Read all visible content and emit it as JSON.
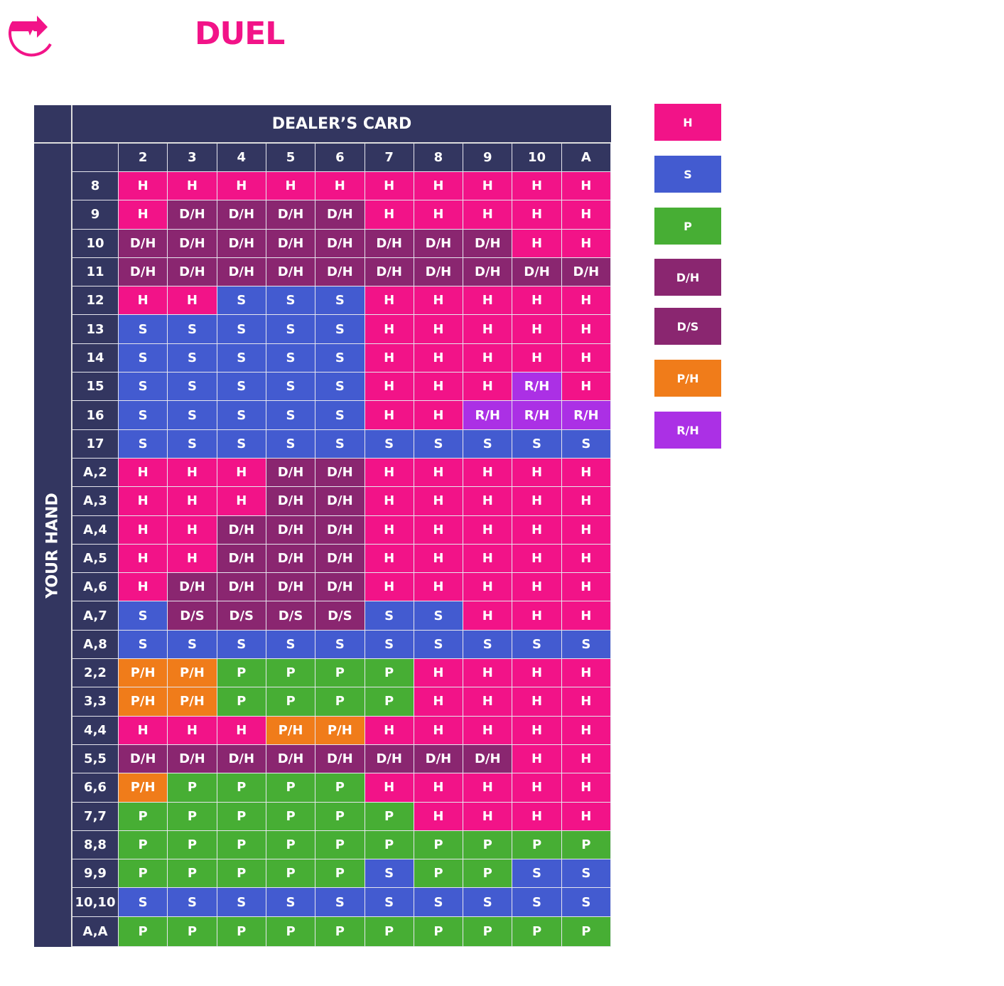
{
  "brand": {
    "name": "DUEL"
  },
  "table": {
    "title": "DEALER’S CARD",
    "side_title": "YOUR HAND",
    "dealer_cards": [
      "2",
      "3",
      "4",
      "5",
      "6",
      "7",
      "8",
      "9",
      "10",
      "A"
    ],
    "rows": [
      {
        "hand": "8",
        "cells": [
          "H",
          "H",
          "H",
          "H",
          "H",
          "H",
          "H",
          "H",
          "H",
          "H"
        ]
      },
      {
        "hand": "9",
        "cells": [
          "H",
          "D/H",
          "D/H",
          "D/H",
          "D/H",
          "H",
          "H",
          "H",
          "H",
          "H"
        ]
      },
      {
        "hand": "10",
        "cells": [
          "D/H",
          "D/H",
          "D/H",
          "D/H",
          "D/H",
          "D/H",
          "D/H",
          "D/H",
          "H",
          "H"
        ]
      },
      {
        "hand": "11",
        "cells": [
          "D/H",
          "D/H",
          "D/H",
          "D/H",
          "D/H",
          "D/H",
          "D/H",
          "D/H",
          "D/H",
          "D/H"
        ]
      },
      {
        "hand": "12",
        "cells": [
          "H",
          "H",
          "S",
          "S",
          "S",
          "H",
          "H",
          "H",
          "H",
          "H"
        ]
      },
      {
        "hand": "13",
        "cells": [
          "S",
          "S",
          "S",
          "S",
          "S",
          "H",
          "H",
          "H",
          "H",
          "H"
        ]
      },
      {
        "hand": "14",
        "cells": [
          "S",
          "S",
          "S",
          "S",
          "S",
          "H",
          "H",
          "H",
          "H",
          "H"
        ]
      },
      {
        "hand": "15",
        "cells": [
          "S",
          "S",
          "S",
          "S",
          "S",
          "H",
          "H",
          "H",
          "R/H",
          "H"
        ]
      },
      {
        "hand": "16",
        "cells": [
          "S",
          "S",
          "S",
          "S",
          "S",
          "H",
          "H",
          "R/H",
          "R/H",
          "R/H"
        ]
      },
      {
        "hand": "17",
        "cells": [
          "S",
          "S",
          "S",
          "S",
          "S",
          "S",
          "S",
          "S",
          "S",
          "S"
        ]
      },
      {
        "hand": "A,2",
        "cells": [
          "H",
          "H",
          "H",
          "D/H",
          "D/H",
          "H",
          "H",
          "H",
          "H",
          "H"
        ]
      },
      {
        "hand": "A,3",
        "cells": [
          "H",
          "H",
          "H",
          "D/H",
          "D/H",
          "H",
          "H",
          "H",
          "H",
          "H"
        ]
      },
      {
        "hand": "A,4",
        "cells": [
          "H",
          "H",
          "D/H",
          "D/H",
          "D/H",
          "H",
          "H",
          "H",
          "H",
          "H"
        ]
      },
      {
        "hand": "A,5",
        "cells": [
          "H",
          "H",
          "D/H",
          "D/H",
          "D/H",
          "H",
          "H",
          "H",
          "H",
          "H"
        ]
      },
      {
        "hand": "A,6",
        "cells": [
          "H",
          "D/H",
          "D/H",
          "D/H",
          "D/H",
          "H",
          "H",
          "H",
          "H",
          "H"
        ]
      },
      {
        "hand": "A,7",
        "cells": [
          "S",
          "D/S",
          "D/S",
          "D/S",
          "D/S",
          "S",
          "S",
          "H",
          "H",
          "H"
        ]
      },
      {
        "hand": "A,8",
        "cells": [
          "S",
          "S",
          "S",
          "S",
          "S",
          "S",
          "S",
          "S",
          "S",
          "S"
        ]
      },
      {
        "hand": "2,2",
        "cells": [
          "P/H",
          "P/H",
          "P",
          "P",
          "P",
          "P",
          "H",
          "H",
          "H",
          "H"
        ]
      },
      {
        "hand": "3,3",
        "cells": [
          "P/H",
          "P/H",
          "P",
          "P",
          "P",
          "P",
          "H",
          "H",
          "H",
          "H"
        ]
      },
      {
        "hand": "4,4",
        "cells": [
          "H",
          "H",
          "H",
          "P/H",
          "P/H",
          "H",
          "H",
          "H",
          "H",
          "H"
        ]
      },
      {
        "hand": "5,5",
        "cells": [
          "D/H",
          "D/H",
          "D/H",
          "D/H",
          "D/H",
          "D/H",
          "D/H",
          "D/H",
          "H",
          "H"
        ]
      },
      {
        "hand": "6,6",
        "cells": [
          "P/H",
          "P",
          "P",
          "P",
          "P",
          "H",
          "H",
          "H",
          "H",
          "H"
        ]
      },
      {
        "hand": "7,7",
        "cells": [
          "P",
          "P",
          "P",
          "P",
          "P",
          "P",
          "H",
          "H",
          "H",
          "H"
        ]
      },
      {
        "hand": "8,8",
        "cells": [
          "P",
          "P",
          "P",
          "P",
          "P",
          "P",
          "P",
          "P",
          "P",
          "P"
        ]
      },
      {
        "hand": "9,9",
        "cells": [
          "P",
          "P",
          "P",
          "P",
          "P",
          "S",
          "P",
          "P",
          "S",
          "S"
        ]
      },
      {
        "hand": "10,10",
        "cells": [
          "S",
          "S",
          "S",
          "S",
          "S",
          "S",
          "S",
          "S",
          "S",
          "S"
        ]
      },
      {
        "hand": "A,A",
        "cells": [
          "P",
          "P",
          "P",
          "P",
          "P",
          "P",
          "P",
          "P",
          "P",
          "P"
        ]
      }
    ]
  },
  "legend": [
    {
      "label": "H",
      "color": "#F21388"
    },
    {
      "label": "S",
      "color": "#435BD0"
    },
    {
      "label": "P",
      "color": "#47AE34"
    },
    {
      "label": "D/H",
      "color": "#8A2670"
    },
    {
      "label": "D/S",
      "color": "#8A2670"
    },
    {
      "label": "P/H",
      "color": "#F07C1A"
    },
    {
      "label": "R/H",
      "color": "#AB30E5"
    }
  ],
  "colors": {
    "header": "#333660",
    "brand": "#F21388"
  }
}
